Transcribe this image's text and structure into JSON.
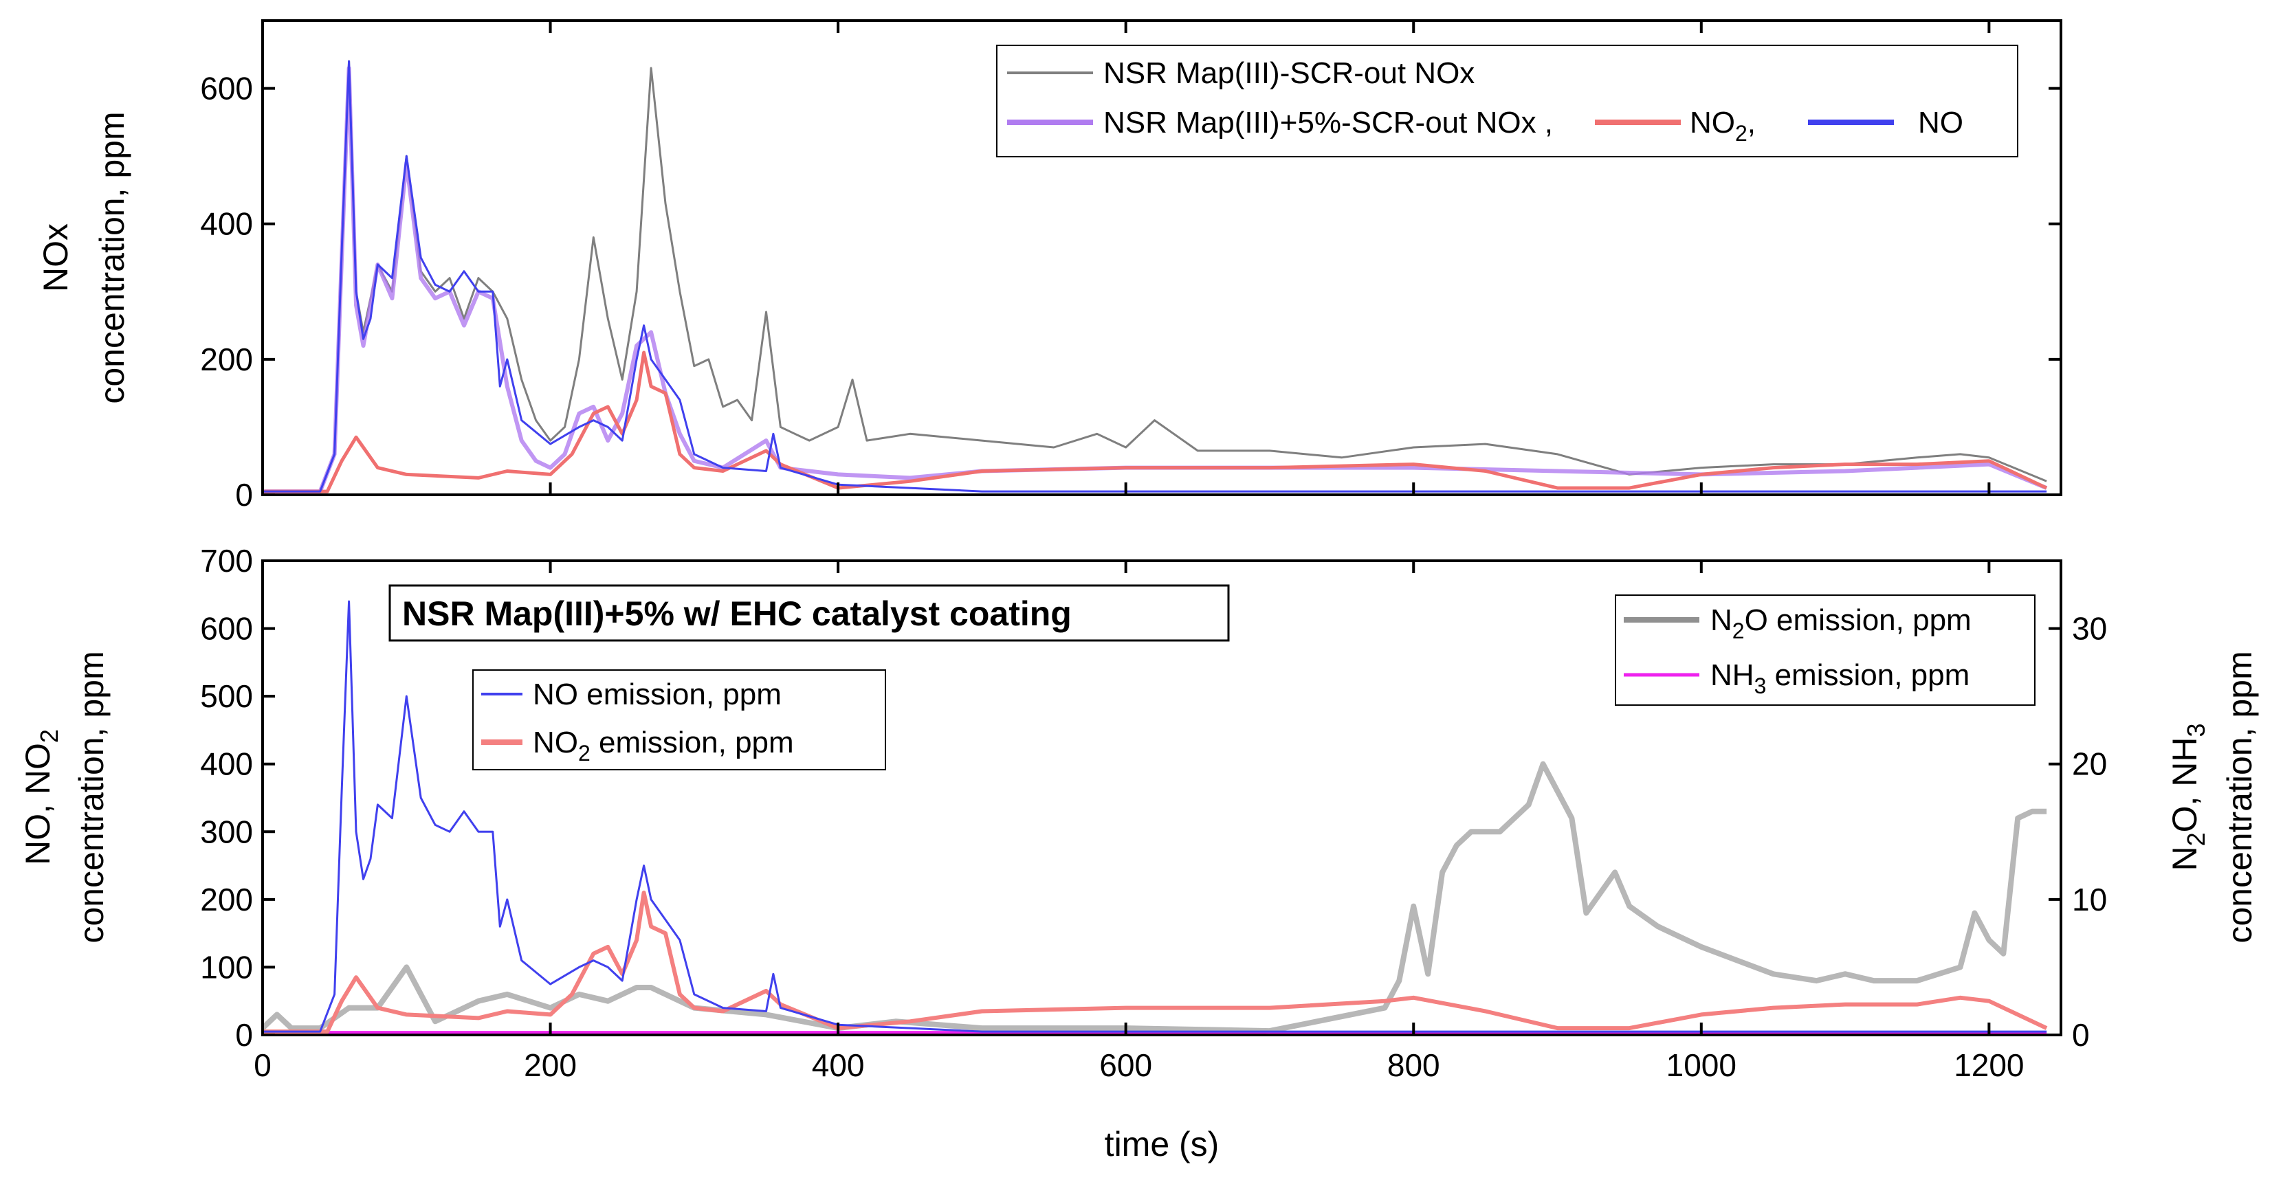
{
  "chart_data": [
    {
      "type": "line",
      "panel": "top",
      "xlabel": "",
      "ylabel_lines": [
        "NOx",
        "concentration, ppm"
      ],
      "xlim": [
        0,
        1250
      ],
      "ylim": [
        0,
        700
      ],
      "x_ticks": [
        0,
        200,
        400,
        600,
        800,
        1000,
        1200
      ],
      "y_ticks": [
        0,
        200,
        400,
        600
      ],
      "legend_position": "top-right",
      "legend": {
        "row1": "NSR Map(III)-SCR-out NOx",
        "row2_a": "NSR Map(III)+5%-SCR-out NOx ,",
        "row2_b_base": "NO",
        "row2_b_sub": "2",
        "row2_b_tail": ",",
        "row2_c": "NO"
      },
      "series": [
        {
          "name": "NSR Map(III)-SCR-out NOx",
          "color": "#7f7f7f",
          "x": [
            0,
            40,
            50,
            55,
            60,
            65,
            70,
            80,
            90,
            100,
            110,
            120,
            130,
            140,
            150,
            160,
            170,
            180,
            190,
            200,
            210,
            220,
            230,
            240,
            250,
            260,
            270,
            280,
            290,
            300,
            310,
            320,
            330,
            340,
            350,
            360,
            370,
            380,
            400,
            410,
            420,
            450,
            500,
            550,
            580,
            600,
            620,
            650,
            700,
            750,
            800,
            850,
            900,
            950,
            1000,
            1050,
            1100,
            1150,
            1180,
            1200,
            1240
          ],
          "y": [
            5,
            5,
            60,
            350,
            640,
            300,
            240,
            340,
            300,
            500,
            330,
            300,
            320,
            260,
            320,
            300,
            260,
            170,
            110,
            80,
            100,
            200,
            380,
            260,
            170,
            300,
            630,
            430,
            300,
            190,
            200,
            130,
            140,
            110,
            270,
            100,
            90,
            80,
            100,
            170,
            80,
            90,
            80,
            70,
            90,
            70,
            110,
            65,
            65,
            55,
            70,
            75,
            60,
            30,
            40,
            45,
            45,
            55,
            60,
            55,
            20
          ]
        },
        {
          "name": "NSR Map(III)+5%-SCR-out NOx",
          "color": "#b07cf0",
          "x": [
            0,
            40,
            50,
            55,
            60,
            65,
            70,
            80,
            90,
            100,
            110,
            120,
            130,
            140,
            150,
            160,
            170,
            180,
            190,
            200,
            210,
            220,
            230,
            240,
            250,
            260,
            270,
            280,
            290,
            300,
            320,
            350,
            360,
            400,
            450,
            500,
            600,
            700,
            800,
            900,
            1000,
            1100,
            1150,
            1200,
            1240
          ],
          "y": [
            5,
            5,
            60,
            350,
            630,
            280,
            220,
            340,
            290,
            490,
            320,
            290,
            300,
            250,
            300,
            290,
            160,
            80,
            50,
            40,
            60,
            120,
            130,
            80,
            120,
            220,
            240,
            150,
            90,
            50,
            40,
            80,
            40,
            30,
            25,
            35,
            40,
            40,
            40,
            35,
            30,
            35,
            40,
            45,
            10
          ]
        },
        {
          "name": "NO2",
          "color": "#f07070",
          "x": [
            0,
            45,
            55,
            65,
            70,
            80,
            100,
            150,
            170,
            200,
            215,
            230,
            240,
            250,
            260,
            265,
            270,
            280,
            290,
            300,
            320,
            350,
            360,
            400,
            450,
            500,
            600,
            700,
            800,
            850,
            900,
            950,
            1000,
            1050,
            1100,
            1150,
            1200,
            1240
          ],
          "y": [
            5,
            5,
            50,
            85,
            70,
            40,
            30,
            25,
            35,
            30,
            60,
            120,
            130,
            90,
            140,
            210,
            160,
            150,
            60,
            40,
            35,
            65,
            45,
            10,
            20,
            35,
            40,
            40,
            45,
            35,
            10,
            10,
            30,
            40,
            45,
            45,
            50,
            10
          ]
        },
        {
          "name": "NO",
          "color": "#4040ee",
          "x": [
            0,
            40,
            50,
            55,
            60,
            65,
            70,
            75,
            80,
            90,
            100,
            110,
            120,
            130,
            140,
            150,
            160,
            165,
            170,
            180,
            200,
            220,
            230,
            240,
            250,
            260,
            265,
            270,
            280,
            290,
            300,
            320,
            350,
            355,
            360,
            400,
            450,
            500,
            600,
            700,
            800,
            900,
            1000,
            1100,
            1200,
            1240
          ],
          "y": [
            5,
            5,
            60,
            360,
            640,
            300,
            230,
            260,
            340,
            320,
            500,
            350,
            310,
            300,
            330,
            300,
            300,
            160,
            200,
            110,
            75,
            100,
            110,
            100,
            80,
            200,
            250,
            200,
            170,
            140,
            60,
            40,
            35,
            90,
            40,
            15,
            10,
            5,
            5,
            5,
            5,
            5,
            5,
            5,
            5,
            5
          ]
        }
      ]
    },
    {
      "type": "line",
      "panel": "bottom",
      "xlabel": "time (s)",
      "ylabel_left_lines": [
        "NO, NO2",
        "concentration, ppm"
      ],
      "ylabel_left_base": "NO, NO",
      "ylabel_left_sub": "2",
      "ylabel_left_line2": "concentration, ppm",
      "ylabel_right": {
        "n": "N",
        "sub1": "2",
        "mid": "O, NH",
        "sub2": "3",
        "line2": "concentration, ppm"
      },
      "xlim": [
        0,
        1250
      ],
      "ylim_left": [
        0,
        700
      ],
      "ylim_right": [
        0,
        35
      ],
      "x_ticks": [
        0,
        200,
        400,
        600,
        800,
        1000,
        1200
      ],
      "y_ticks_left": [
        0,
        100,
        200,
        300,
        400,
        500,
        600,
        700
      ],
      "y_ticks_right": [
        0,
        10,
        20,
        30
      ],
      "annotation": "NSR Map(III)+5% w/ EHC catalyst coating",
      "legend_left": {
        "no": "NO emission, ppm",
        "no2_base": "NO",
        "no2_sub": "2",
        "no2_tail": " emission, ppm"
      },
      "legend_right": {
        "n2o_base": "N",
        "n2o_sub": "2",
        "n2o_tail": "O emission, ppm",
        "nh3_base": "NH",
        "nh3_sub": "3",
        "nh3_tail": " emission, ppm"
      },
      "series": [
        {
          "name": "NO emission, ppm",
          "axis": "left",
          "color": "#4040ee",
          "x": [
            0,
            40,
            50,
            55,
            60,
            65,
            70,
            75,
            80,
            90,
            100,
            110,
            120,
            130,
            140,
            150,
            160,
            165,
            170,
            180,
            200,
            220,
            230,
            240,
            250,
            260,
            265,
            270,
            280,
            290,
            300,
            320,
            350,
            355,
            360,
            400,
            450,
            500,
            600,
            700,
            800,
            900,
            1000,
            1100,
            1200,
            1240
          ],
          "y": [
            5,
            5,
            60,
            360,
            640,
            300,
            230,
            260,
            340,
            320,
            500,
            350,
            310,
            300,
            330,
            300,
            300,
            160,
            200,
            110,
            75,
            100,
            110,
            100,
            80,
            200,
            250,
            200,
            170,
            140,
            60,
            40,
            35,
            90,
            40,
            15,
            10,
            5,
            5,
            5,
            5,
            5,
            5,
            5,
            5,
            5
          ]
        },
        {
          "name": "NO2 emission, ppm",
          "axis": "left",
          "color": "#f48080",
          "x": [
            0,
            45,
            55,
            65,
            70,
            80,
            100,
            150,
            170,
            200,
            215,
            230,
            240,
            250,
            260,
            265,
            270,
            280,
            290,
            300,
            320,
            350,
            360,
            400,
            450,
            500,
            600,
            700,
            780,
            800,
            850,
            900,
            950,
            1000,
            1050,
            1100,
            1150,
            1180,
            1200,
            1240
          ],
          "y": [
            5,
            5,
            50,
            85,
            70,
            40,
            30,
            25,
            35,
            30,
            60,
            120,
            130,
            90,
            140,
            210,
            160,
            150,
            60,
            40,
            35,
            65,
            45,
            10,
            20,
            35,
            40,
            40,
            50,
            55,
            35,
            10,
            10,
            30,
            40,
            45,
            45,
            55,
            50,
            10
          ]
        },
        {
          "name": "N2O emission, ppm",
          "axis": "right",
          "color": "#aaaaaa",
          "x": [
            0,
            10,
            20,
            40,
            60,
            80,
            100,
            120,
            150,
            170,
            200,
            220,
            240,
            260,
            270,
            280,
            300,
            350,
            400,
            440,
            500,
            600,
            700,
            780,
            790,
            800,
            810,
            820,
            830,
            840,
            860,
            880,
            890,
            900,
            910,
            920,
            940,
            950,
            970,
            1000,
            1050,
            1080,
            1100,
            1120,
            1150,
            1180,
            1190,
            1200,
            1210,
            1220,
            1230,
            1240
          ],
          "y": [
            0.5,
            1.5,
            0.5,
            0.5,
            2,
            2,
            5,
            1,
            2.5,
            3,
            2,
            3,
            2.5,
            3.5,
            3.5,
            3,
            2,
            1.5,
            0.5,
            1,
            0.5,
            0.5,
            0.3,
            2,
            4,
            9.5,
            4.5,
            12,
            14,
            15,
            15,
            17,
            20,
            18,
            16,
            9,
            12,
            9.5,
            8,
            6.5,
            4.5,
            4,
            4.5,
            4,
            4,
            5,
            9,
            7,
            6,
            16,
            16.5,
            16.5
          ]
        },
        {
          "name": "NH3 emission, ppm",
          "axis": "right",
          "color": "#ee22ee",
          "x": [
            0,
            1240
          ],
          "y": [
            0.2,
            0.2
          ]
        }
      ]
    }
  ]
}
